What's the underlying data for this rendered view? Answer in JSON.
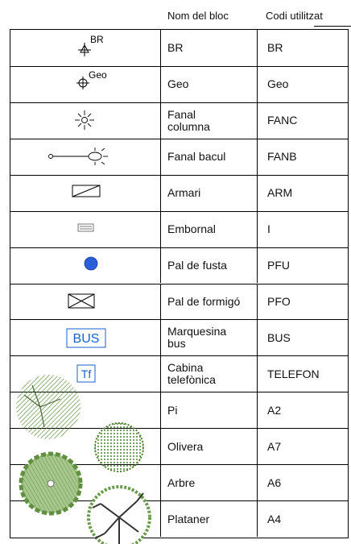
{
  "header": {
    "name": "Nom del bloc",
    "code": "Codi utilitzat"
  },
  "rows": [
    {
      "symbol_label": "BR",
      "name": "BR",
      "code": "BR"
    },
    {
      "symbol_label": "Geo",
      "name": "Geo",
      "code": "Geo"
    },
    {
      "name": "Fanal\ncolumna",
      "code": "FANC"
    },
    {
      "name": "Fanal bacul",
      "code": "FANB"
    },
    {
      "name": "Armari",
      "code": "ARM"
    },
    {
      "name": "Embornal",
      "code": "I"
    },
    {
      "name": "Pal de fusta",
      "code": "PFU"
    },
    {
      "name": "Pal de formigó",
      "code": "PFO"
    },
    {
      "symbol_label": "BUS",
      "name": "Marquesina\nbus",
      "code": "BUS"
    },
    {
      "symbol_label": "Tf",
      "name": "Cabina\ntelefònica",
      "code": "TELEFON"
    },
    {
      "name": "Pi",
      "code": "A2"
    },
    {
      "name": "Olivera",
      "code": "A7"
    },
    {
      "name": "Arbre",
      "code": "A6"
    },
    {
      "name": "Plataner",
      "code": "A4"
    }
  ]
}
